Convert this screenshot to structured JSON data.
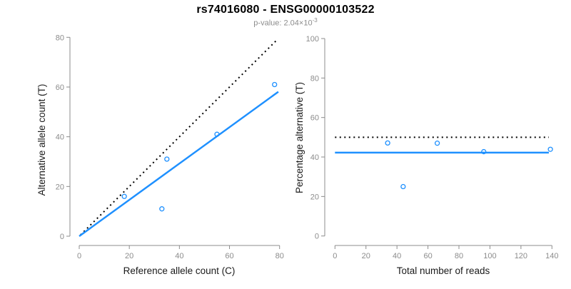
{
  "header": {
    "title": "rs74016080 - ENSG00000103522",
    "subtitle_text": "p-value: 2.04×10",
    "subtitle_exponent": "-3"
  },
  "colors": {
    "accent_blue": "#1E90FF",
    "axis_gray": "#8c8c8c",
    "tick_label_gray": "#8c8c8c",
    "axis_title_black": "#1a1a1a",
    "dotted_black": "#000000"
  },
  "chart_data": [
    {
      "name": "allele-count-scatter",
      "type": "scatter",
      "title": "",
      "xlabel": "Reference allele count (C)",
      "ylabel": "Alternative allele count (T)",
      "xlim": [
        0,
        80
      ],
      "ylim": [
        0,
        80
      ],
      "xticks": [
        0,
        20,
        40,
        60,
        80
      ],
      "yticks": [
        0,
        20,
        40,
        60,
        80
      ],
      "grid": false,
      "points": [
        [
          18,
          16
        ],
        [
          33,
          11
        ],
        [
          35,
          31
        ],
        [
          55,
          41
        ],
        [
          78,
          61
        ]
      ],
      "lines": [
        {
          "name": "identity-line",
          "style": "dotted",
          "color": "#000000",
          "x1": 0.5,
          "y1": 0.5,
          "x2": 79,
          "y2": 79
        },
        {
          "name": "fit-line",
          "style": "solid",
          "color": "#1E90FF",
          "x1": 0,
          "y1": 0,
          "x2": 79.5,
          "y2": 58.1
        }
      ]
    },
    {
      "name": "percentage-alternative-scatter",
      "type": "scatter",
      "title": "",
      "xlabel": "Total number of reads",
      "ylabel": "Percentage alternative (T)",
      "xlim": [
        0,
        140
      ],
      "ylim": [
        0,
        100
      ],
      "xticks": [
        0,
        20,
        40,
        60,
        80,
        100,
        120,
        140
      ],
      "yticks": [
        0,
        20,
        40,
        60,
        80,
        100
      ],
      "grid": false,
      "points": [
        [
          34,
          47.1
        ],
        [
          44,
          25
        ],
        [
          66,
          47
        ],
        [
          96,
          42.7
        ],
        [
          139,
          43.9
        ]
      ],
      "lines": [
        {
          "name": "expected-50pct-line",
          "style": "dotted",
          "color": "#000000",
          "x1": 0,
          "y1": 50,
          "x2": 138,
          "y2": 50
        },
        {
          "name": "mean-percentage-line",
          "style": "solid",
          "color": "#1E90FF",
          "x1": 0,
          "y1": 42.2,
          "x2": 138,
          "y2": 42.2
        }
      ]
    }
  ]
}
